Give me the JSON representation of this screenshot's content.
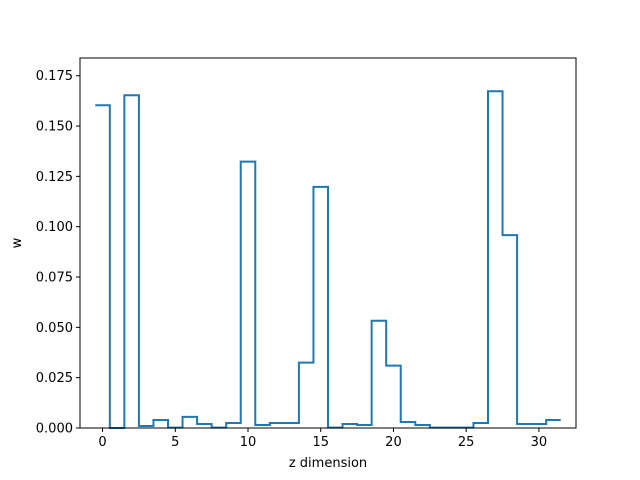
{
  "chart_data": {
    "type": "line",
    "style": "step",
    "title": "",
    "xlabel": "z dimension",
    "ylabel": "w",
    "xlim": [
      -1.55,
      32.55
    ],
    "ylim": [
      0.0,
      0.1838
    ],
    "xticks": [
      0,
      5,
      10,
      15,
      20,
      25,
      30
    ],
    "xtick_labels": [
      "0",
      "5",
      "10",
      "15",
      "20",
      "25",
      "30"
    ],
    "yticks": [
      0.0,
      0.025,
      0.05,
      0.075,
      0.1,
      0.125,
      0.15,
      0.175
    ],
    "ytick_labels": [
      "0.000",
      "0.025",
      "0.050",
      "0.075",
      "0.100",
      "0.125",
      "0.150",
      "0.175"
    ],
    "grid": false,
    "legend": false,
    "color": "#1f77b4",
    "series": [
      {
        "x": [
          0,
          1,
          2,
          3,
          4,
          5,
          6,
          7,
          8,
          9,
          10,
          11,
          12,
          13,
          14,
          15,
          16,
          17,
          18,
          19,
          20,
          21,
          22,
          23,
          24,
          25,
          26,
          27,
          28,
          29,
          30,
          31
        ],
        "values": [
          0.1603,
          0.0,
          0.1653,
          0.001,
          0.004,
          0.0002,
          0.0055,
          0.002,
          0.0002,
          0.0025,
          0.1323,
          0.0015,
          0.0025,
          0.0025,
          0.0325,
          0.1198,
          0.0002,
          0.002,
          0.0015,
          0.0533,
          0.031,
          0.003,
          0.0015,
          0.0002,
          0.0002,
          0.0002,
          0.0025,
          0.1673,
          0.0958,
          0.002,
          0.002,
          0.004
        ]
      }
    ]
  }
}
